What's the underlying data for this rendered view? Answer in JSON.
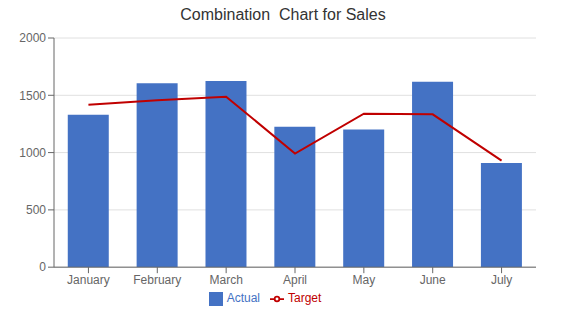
{
  "chart_data": {
    "type": "bar",
    "title": "Combination  Chart for Sales",
    "categories": [
      "January",
      "February",
      "March",
      "April",
      "May",
      "June",
      "July"
    ],
    "series": [
      {
        "name": "Actual",
        "type": "bar",
        "color": "#4472C4",
        "values": [
          1331,
          1606,
          1624,
          1225,
          1202,
          1618,
          909
        ]
      },
      {
        "name": "Target",
        "type": "line",
        "color": "#C00000",
        "values": [
          1417,
          1457,
          1488,
          992,
          1339,
          1334,
          930
        ]
      }
    ],
    "ylim": [
      0,
      2000
    ],
    "yticks": [
      0,
      500,
      1000,
      1500,
      2000
    ],
    "grid": true,
    "legend": "bottom"
  }
}
